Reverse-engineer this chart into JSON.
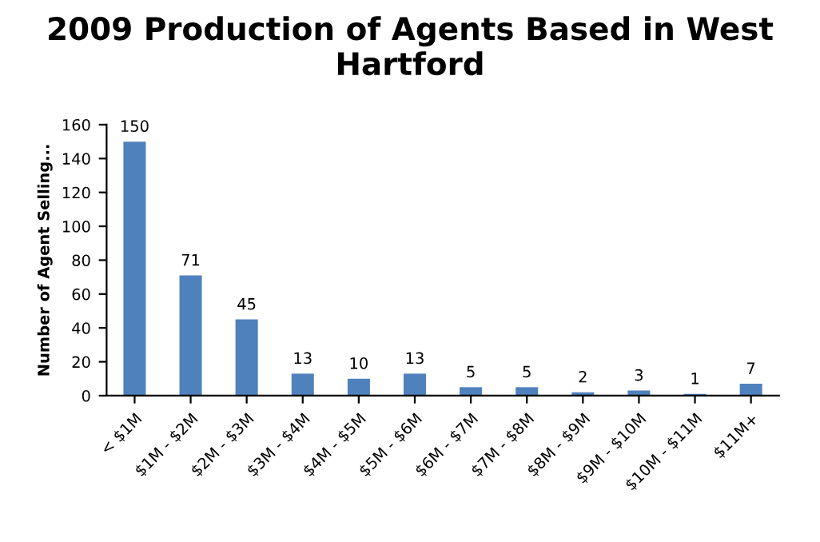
{
  "chart_data": {
    "type": "bar",
    "title": "2009 Production of Agents Based in West Hartford",
    "ylabel": "Number of Agent Selling...",
    "categories": [
      "< $1M",
      "$1M - $2M",
      "$2M - $3M",
      "$3M - $4M",
      "$4M - $5M",
      "$5M - $6M",
      "$6M - $7M",
      "$7M - $8M",
      "$8M - $9M",
      "$9M - $10M",
      "$10M - $11M",
      "$11M+"
    ],
    "values": [
      150,
      71,
      45,
      13,
      10,
      13,
      5,
      5,
      2,
      3,
      1,
      7
    ],
    "color": "#4f81bd",
    "ylim": [
      0,
      160
    ],
    "yticks": [
      0,
      20,
      40,
      60,
      80,
      100,
      120,
      140,
      160
    ],
    "data_labels": true,
    "grid": false,
    "legend": false
  }
}
